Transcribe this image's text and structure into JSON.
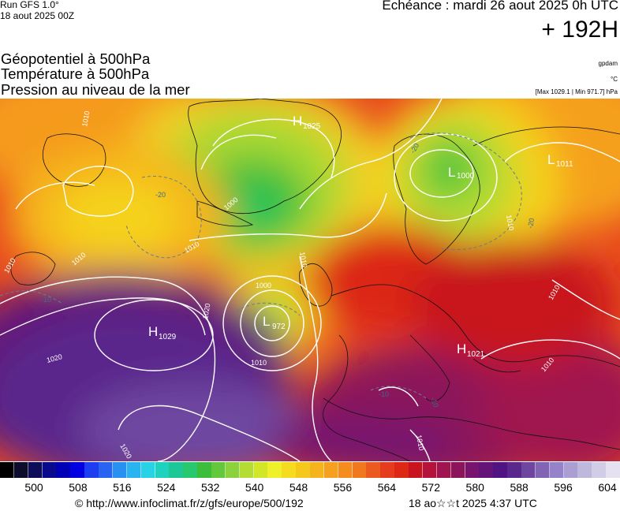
{
  "header": {
    "run": "Run GFS 1.0°",
    "run_date": "18 aout 2025 00Z",
    "valid": "Echéance : mardi 26 aout 2025 0h UTC",
    "lead": "+ 192H",
    "unit_geopot": "gpdam",
    "unit_temp": "°C",
    "pressure_range": "[Max 1029.1 | Min 971.7] hPa"
  },
  "titles": {
    "line1": "Géopotentiel à 500hPa",
    "line2": "Température à 500hPa",
    "line3": "Pression au niveau de la mer"
  },
  "map": {
    "centers": [
      {
        "type": "H",
        "value": "1025"
      },
      {
        "type": "L",
        "value": "1000"
      },
      {
        "type": "L",
        "value": "1011"
      },
      {
        "type": "H",
        "value": "1029"
      },
      {
        "type": "L",
        "value": "972"
      },
      {
        "type": "H",
        "value": "1021"
      }
    ],
    "isobar_labels": [
      "1010",
      "1010",
      "1010",
      "1020",
      "1020",
      "1000",
      "1010",
      "1010",
      "1010",
      "1010",
      "1020",
      "1010",
      "1000",
      "1010",
      "1010"
    ],
    "temp_labels": [
      "-20",
      "-20",
      "-20",
      "-10",
      "-10",
      "-10"
    ]
  },
  "colorbar": {
    "ticks": [
      "500",
      "508",
      "516",
      "524",
      "532",
      "540",
      "548",
      "556",
      "564",
      "572",
      "580",
      "588",
      "596",
      "604"
    ],
    "colors": [
      "#000000",
      "#0c0c2c",
      "#0d0d5a",
      "#0a0a8c",
      "#0000b4",
      "#0000e0",
      "#1e3cf0",
      "#2864f0",
      "#2890f0",
      "#28b4f0",
      "#28d2e6",
      "#1ed2be",
      "#1ec896",
      "#28c86e",
      "#3cbe3c",
      "#64c83c",
      "#8cd23c",
      "#b4dc32",
      "#d2e628",
      "#f0f028",
      "#f5dc1e",
      "#f5c81e",
      "#f5b41e",
      "#f5a01e",
      "#f58c1e",
      "#f0781e",
      "#eb5a1e",
      "#e63c1e",
      "#dc2814",
      "#c8141e",
      "#b4143c",
      "#a01450",
      "#8c145a",
      "#78146e",
      "#641478",
      "#501482",
      "#5a288c",
      "#6e46a0",
      "#8264b4",
      "#9682c8",
      "#aa9ed2",
      "#beb9dc",
      "#d2cde6",
      "#e6e1f0"
    ]
  },
  "footer": {
    "credit": "© http://www.infoclimat.fr/z/gfs/europe/500/192",
    "generated": "18 ao☆☆t 2025  4:37 UTC"
  }
}
